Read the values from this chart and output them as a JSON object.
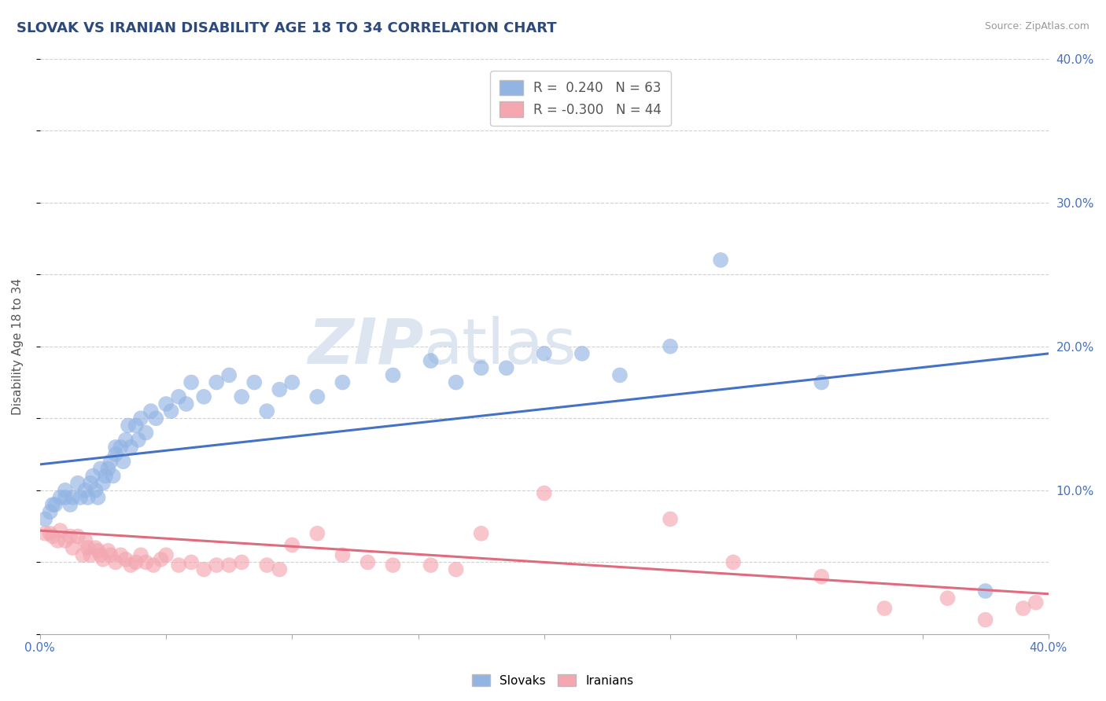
{
  "title": "SLOVAK VS IRANIAN DISABILITY AGE 18 TO 34 CORRELATION CHART",
  "source_text": "Source: ZipAtlas.com",
  "ylabel": "Disability Age 18 to 34",
  "xlim": [
    0.0,
    0.4
  ],
  "ylim": [
    0.0,
    0.4
  ],
  "slovak_R": 0.24,
  "slovak_N": 63,
  "iranian_R": -0.3,
  "iranian_N": 44,
  "slovak_color": "#92b4e3",
  "iranian_color": "#f4a7b0",
  "slovak_line_color": "#4472c4",
  "iranian_line_color": "#e06b7e",
  "background_color": "#ffffff",
  "grid_color": "#cccccc",
  "title_color": "#2e4a7a",
  "watermark_color": "#dce5f0",
  "slovak_line_start_y": 0.118,
  "slovak_line_end_y": 0.195,
  "iranian_line_start_y": 0.072,
  "iranian_line_end_y": 0.028,
  "slovak_x": [
    0.002,
    0.004,
    0.005,
    0.006,
    0.008,
    0.01,
    0.01,
    0.012,
    0.013,
    0.015,
    0.016,
    0.018,
    0.019,
    0.02,
    0.021,
    0.022,
    0.023,
    0.024,
    0.025,
    0.026,
    0.027,
    0.028,
    0.029,
    0.03,
    0.03,
    0.032,
    0.033,
    0.034,
    0.035,
    0.036,
    0.038,
    0.039,
    0.04,
    0.042,
    0.044,
    0.046,
    0.05,
    0.052,
    0.055,
    0.058,
    0.06,
    0.065,
    0.07,
    0.075,
    0.08,
    0.085,
    0.09,
    0.095,
    0.1,
    0.11,
    0.12,
    0.14,
    0.155,
    0.165,
    0.175,
    0.185,
    0.2,
    0.215,
    0.23,
    0.25,
    0.27,
    0.31,
    0.375
  ],
  "slovak_y": [
    0.08,
    0.085,
    0.09,
    0.09,
    0.095,
    0.095,
    0.1,
    0.09,
    0.095,
    0.105,
    0.095,
    0.1,
    0.095,
    0.105,
    0.11,
    0.1,
    0.095,
    0.115,
    0.105,
    0.11,
    0.115,
    0.12,
    0.11,
    0.13,
    0.125,
    0.13,
    0.12,
    0.135,
    0.145,
    0.13,
    0.145,
    0.135,
    0.15,
    0.14,
    0.155,
    0.15,
    0.16,
    0.155,
    0.165,
    0.16,
    0.175,
    0.165,
    0.175,
    0.18,
    0.165,
    0.175,
    0.155,
    0.17,
    0.175,
    0.165,
    0.175,
    0.18,
    0.19,
    0.175,
    0.185,
    0.185,
    0.195,
    0.195,
    0.18,
    0.2,
    0.26,
    0.175,
    0.03
  ],
  "iranian_x": [
    0.002,
    0.004,
    0.005,
    0.007,
    0.008,
    0.01,
    0.012,
    0.013,
    0.015,
    0.017,
    0.018,
    0.019,
    0.02,
    0.022,
    0.023,
    0.024,
    0.025,
    0.027,
    0.028,
    0.03,
    0.032,
    0.034,
    0.036,
    0.038,
    0.04,
    0.042,
    0.045,
    0.048,
    0.05,
    0.055,
    0.06,
    0.065,
    0.07,
    0.075,
    0.08,
    0.09,
    0.095,
    0.1,
    0.11,
    0.12,
    0.13,
    0.14,
    0.155,
    0.165
  ],
  "iranian_y": [
    0.07,
    0.07,
    0.068,
    0.065,
    0.072,
    0.065,
    0.068,
    0.06,
    0.068,
    0.055,
    0.065,
    0.06,
    0.055,
    0.06,
    0.058,
    0.055,
    0.052,
    0.058,
    0.055,
    0.05,
    0.055,
    0.052,
    0.048,
    0.05,
    0.055,
    0.05,
    0.048,
    0.052,
    0.055,
    0.048,
    0.05,
    0.045,
    0.048,
    0.048,
    0.05,
    0.048,
    0.045,
    0.062,
    0.07,
    0.055,
    0.05,
    0.048,
    0.048,
    0.045
  ],
  "iranian_extra_x": [
    0.175,
    0.2,
    0.25,
    0.275,
    0.31,
    0.335,
    0.36,
    0.375,
    0.39,
    0.395
  ],
  "iranian_extra_y": [
    0.07,
    0.098,
    0.08,
    0.05,
    0.04,
    0.018,
    0.025,
    0.01,
    0.018,
    0.022
  ]
}
